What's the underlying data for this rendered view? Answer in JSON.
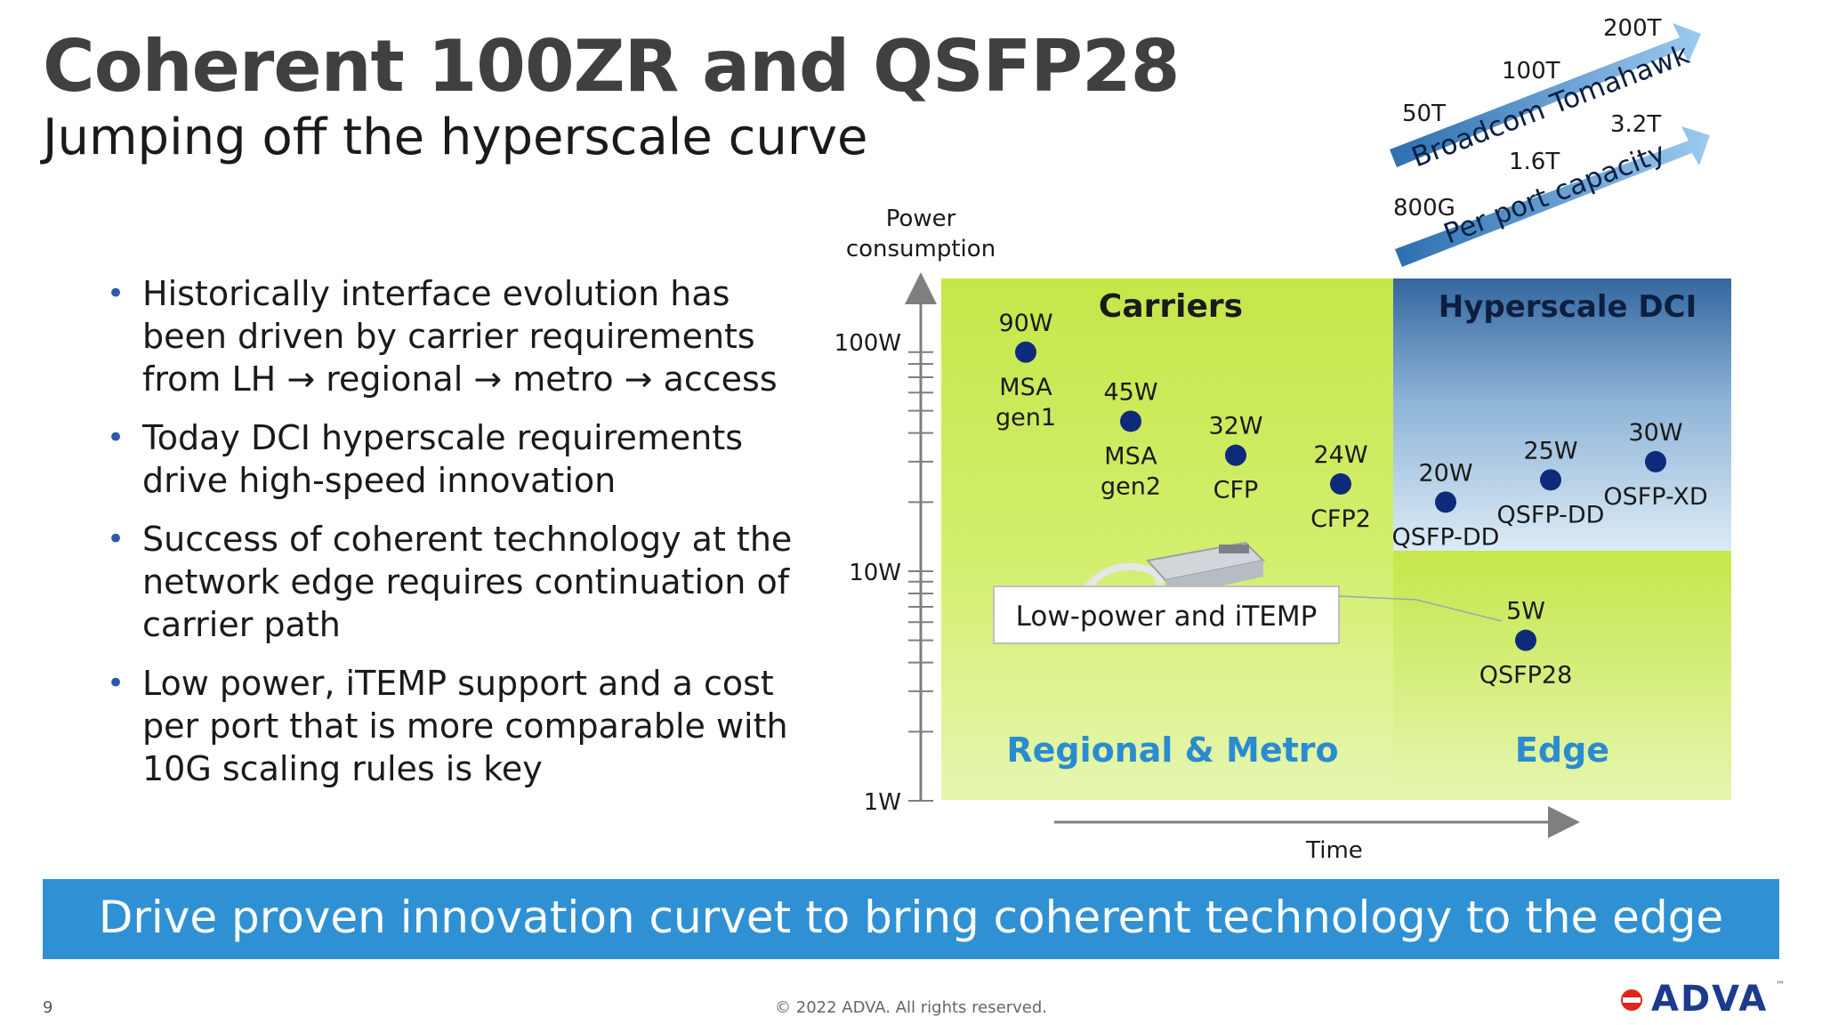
{
  "slide": {
    "title": "Coherent 100ZR and QSFP28",
    "subtitle": "Jumping off the hyperscale curve",
    "bullets": [
      "Historically interface evolution has been driven by carrier requirements from LH → regional → metro → access",
      "Today DCI hyperscale requirements drive high-speed innovation",
      "Success of coherent technology at the network edge requires continuation of carrier path",
      "Low power, iTEMP support and a cost per port that is more comparable with 10G scaling rules is key"
    ],
    "banner": "Drive proven innovation curvet to bring coherent technology to the edge",
    "page_number": "9",
    "copyright": "© 2022 ADVA. All rights reserved.",
    "logo_text": "ADVA",
    "logo_tm": "™"
  },
  "chart_data": {
    "type": "scatter",
    "ylabel": "Power consumption",
    "xlabel": "Time",
    "y_scale": "log",
    "yticks": [
      "100W",
      "10W",
      "1W"
    ],
    "ytick_values": [
      100,
      10,
      1
    ],
    "regions": [
      {
        "label": "Carriers",
        "color": "#c5e84f"
      },
      {
        "label": "Hyperscale DCI",
        "color": "#3a6ea5"
      },
      {
        "label": "Regional & Metro",
        "color": "#2b8bd0"
      },
      {
        "label": "Edge",
        "color": "#2b8bd0"
      }
    ],
    "points": [
      {
        "power_label": "90W",
        "name": "MSA gen1",
        "value": 90,
        "order": 1
      },
      {
        "power_label": "45W",
        "name": "MSA gen2",
        "value": 45,
        "order": 2
      },
      {
        "power_label": "32W",
        "name": "CFP",
        "value": 32,
        "order": 3
      },
      {
        "power_label": "24W",
        "name": "CFP2",
        "value": 24,
        "order": 4
      },
      {
        "power_label": "20W",
        "name": "QSFP-DD",
        "value": 20,
        "order": 5
      },
      {
        "power_label": "25W",
        "name": "QSFP-DD",
        "value": 25,
        "order": 6
      },
      {
        "power_label": "30W",
        "name": "OSFP-XD",
        "value": 30,
        "order": 7
      },
      {
        "power_label": "5W",
        "name": "QSFP28",
        "value": 5,
        "order": 6
      }
    ],
    "callout": "Low-power and iTEMP",
    "trend_arrows": [
      {
        "name": "Broadcom Tomahawk",
        "labels": [
          "50T",
          "100T",
          "200T"
        ]
      },
      {
        "name": "Per port capacity",
        "labels": [
          "800G",
          "1.6T",
          "3.2T"
        ]
      }
    ],
    "colors": {
      "point": "#0f2a7a",
      "carriers_bg": "#c8ea55",
      "dci_top": "#3a6ea5",
      "dci_bottom": "#d9ecf7",
      "axis": "#7f7f7f"
    }
  }
}
